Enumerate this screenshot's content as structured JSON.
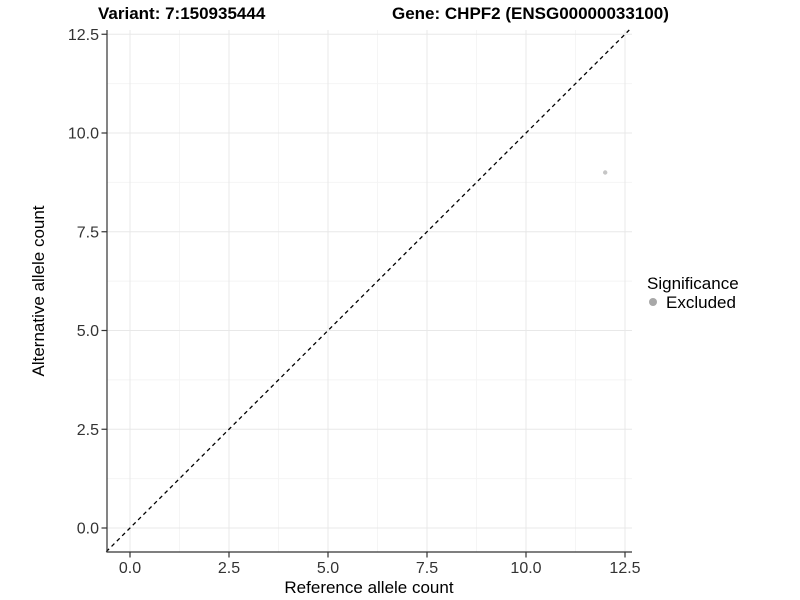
{
  "chart_data": {
    "type": "scatter",
    "titles": {
      "left": "Variant: 7:150935444",
      "right": "Gene: CHPF2 (ENSG00000033100)"
    },
    "xlabel": "Reference allele count",
    "ylabel": "Alternative allele count",
    "xlim": [
      -0.6,
      12.7
    ],
    "ylim": [
      -0.6,
      12.7
    ],
    "xticks": {
      "values": [
        0,
        2.5,
        5,
        7.5,
        10,
        12.5
      ],
      "labels": [
        "0.0",
        "2.5",
        "5.0",
        "7.5",
        "10.0",
        "12.5"
      ]
    },
    "yticks": {
      "values": [
        0,
        2.5,
        5,
        7.5,
        10,
        12.5
      ],
      "labels": [
        "0.0",
        "2.5",
        "5.0",
        "7.5",
        "10.0",
        "12.5"
      ]
    },
    "grid": {
      "major": true,
      "minor": true
    },
    "reference_line": {
      "kind": "identity",
      "equation": "y = x",
      "style": "dashed",
      "color": "#000000"
    },
    "series": [
      {
        "name": "Excluded",
        "color": "#c6c6c6",
        "points": [
          {
            "x": 12,
            "y": 9
          }
        ]
      }
    ],
    "legend": {
      "title": "Significance",
      "position": "right",
      "entries": [
        {
          "label": "Excluded",
          "swatch_color": "#a8a8a8"
        }
      ]
    }
  },
  "colors": {
    "background": "#ffffff",
    "grid_major": "#e8e8e8",
    "grid_minor": "#f4f4f4",
    "axis_line": "#333333",
    "tick_mark": "#333333",
    "tick_label": "#333333"
  }
}
